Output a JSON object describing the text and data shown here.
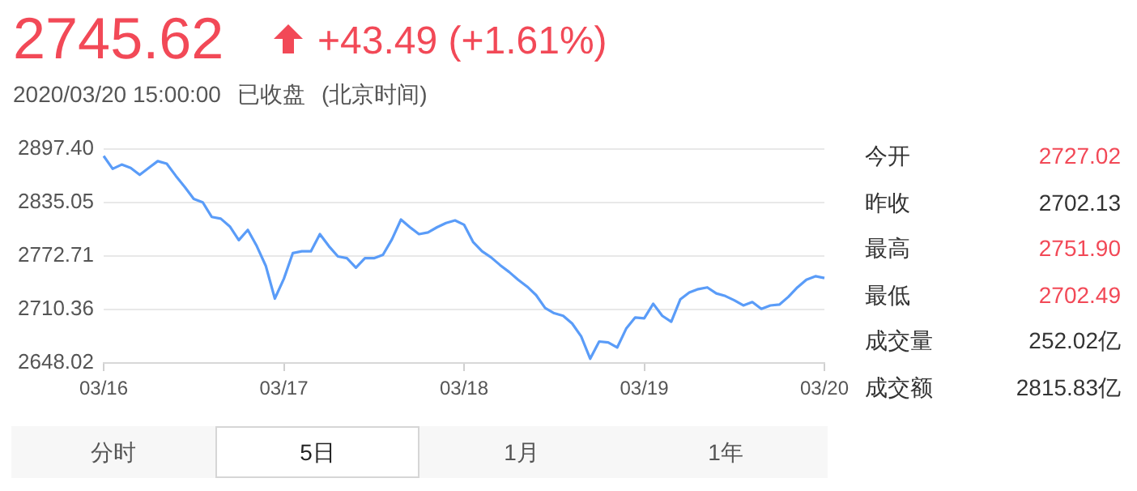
{
  "chart_data": {
    "type": "line",
    "title": "2745.62",
    "subtitle": "+43.49 (+1.61%)",
    "annotations": [
      "2020/03/20 15:00:00",
      "已收盘",
      "(北京时间)",
      "今开",
      "2727.02",
      "昨收",
      "2702.13",
      "最高",
      "2751.90",
      "最低",
      "2702.49",
      "成交量",
      "252.02亿",
      "成交额",
      "2815.83亿",
      "分时",
      "5日",
      "1月",
      "1年"
    ],
    "categories": [
      "03/16",
      null,
      null,
      null,
      null,
      null,
      null,
      null,
      null,
      null,
      null,
      null,
      null,
      null,
      null,
      null,
      null,
      null,
      null,
      null,
      "03/17",
      null,
      null,
      null,
      null,
      null,
      null,
      null,
      null,
      null,
      null,
      null,
      null,
      null,
      null,
      null,
      null,
      null,
      null,
      null,
      "03/18",
      null,
      null,
      null,
      null,
      null,
      null,
      null,
      null,
      null,
      null,
      null,
      null,
      null,
      null,
      null,
      null,
      null,
      null,
      null,
      "03/19",
      null,
      null,
      null,
      null,
      null,
      null,
      null,
      null,
      null,
      null,
      null,
      null,
      null,
      null,
      null,
      null,
      null,
      null,
      null,
      "03/20"
    ],
    "series": [
      {
        "color": "#5a9cf8",
        "values": [
          2889,
          2874,
          2879,
          2875,
          2867,
          2875,
          2883,
          2880,
          2866,
          2853,
          2839,
          2835,
          2818,
          2816,
          2807,
          2791,
          2803,
          2784,
          2761,
          2723,
          2746,
          2776,
          2778,
          2778,
          2798,
          2784,
          2772,
          2770,
          2759,
          2770,
          2770,
          2774,
          2792,
          2815,
          2806,
          2798,
          2800,
          2806,
          2811,
          2814,
          2809,
          2789,
          2778,
          2771,
          2762,
          2754,
          2745,
          2737,
          2727,
          2712,
          2706,
          2703,
          2694,
          2679,
          2653,
          2673,
          2672,
          2666,
          2688,
          2701,
          2700,
          2717,
          2703,
          2696,
          2722,
          2730,
          2734,
          2736,
          2729,
          2726,
          2721,
          2715,
          2719,
          2711,
          2715,
          2716,
          2725,
          2736,
          2745,
          2749,
          2747
        ]
      }
    ],
    "ylim": [
      2648.02,
      2897.4
    ],
    "yticks": [
      2648.02,
      2710.36,
      2772.71,
      2835.05,
      {
        "value": 2897.4,
        "label": "2897.40"
      }
    ],
    "grid": "y",
    "legend": false,
    "marker": "none",
    "line_style": "solid"
  }
}
